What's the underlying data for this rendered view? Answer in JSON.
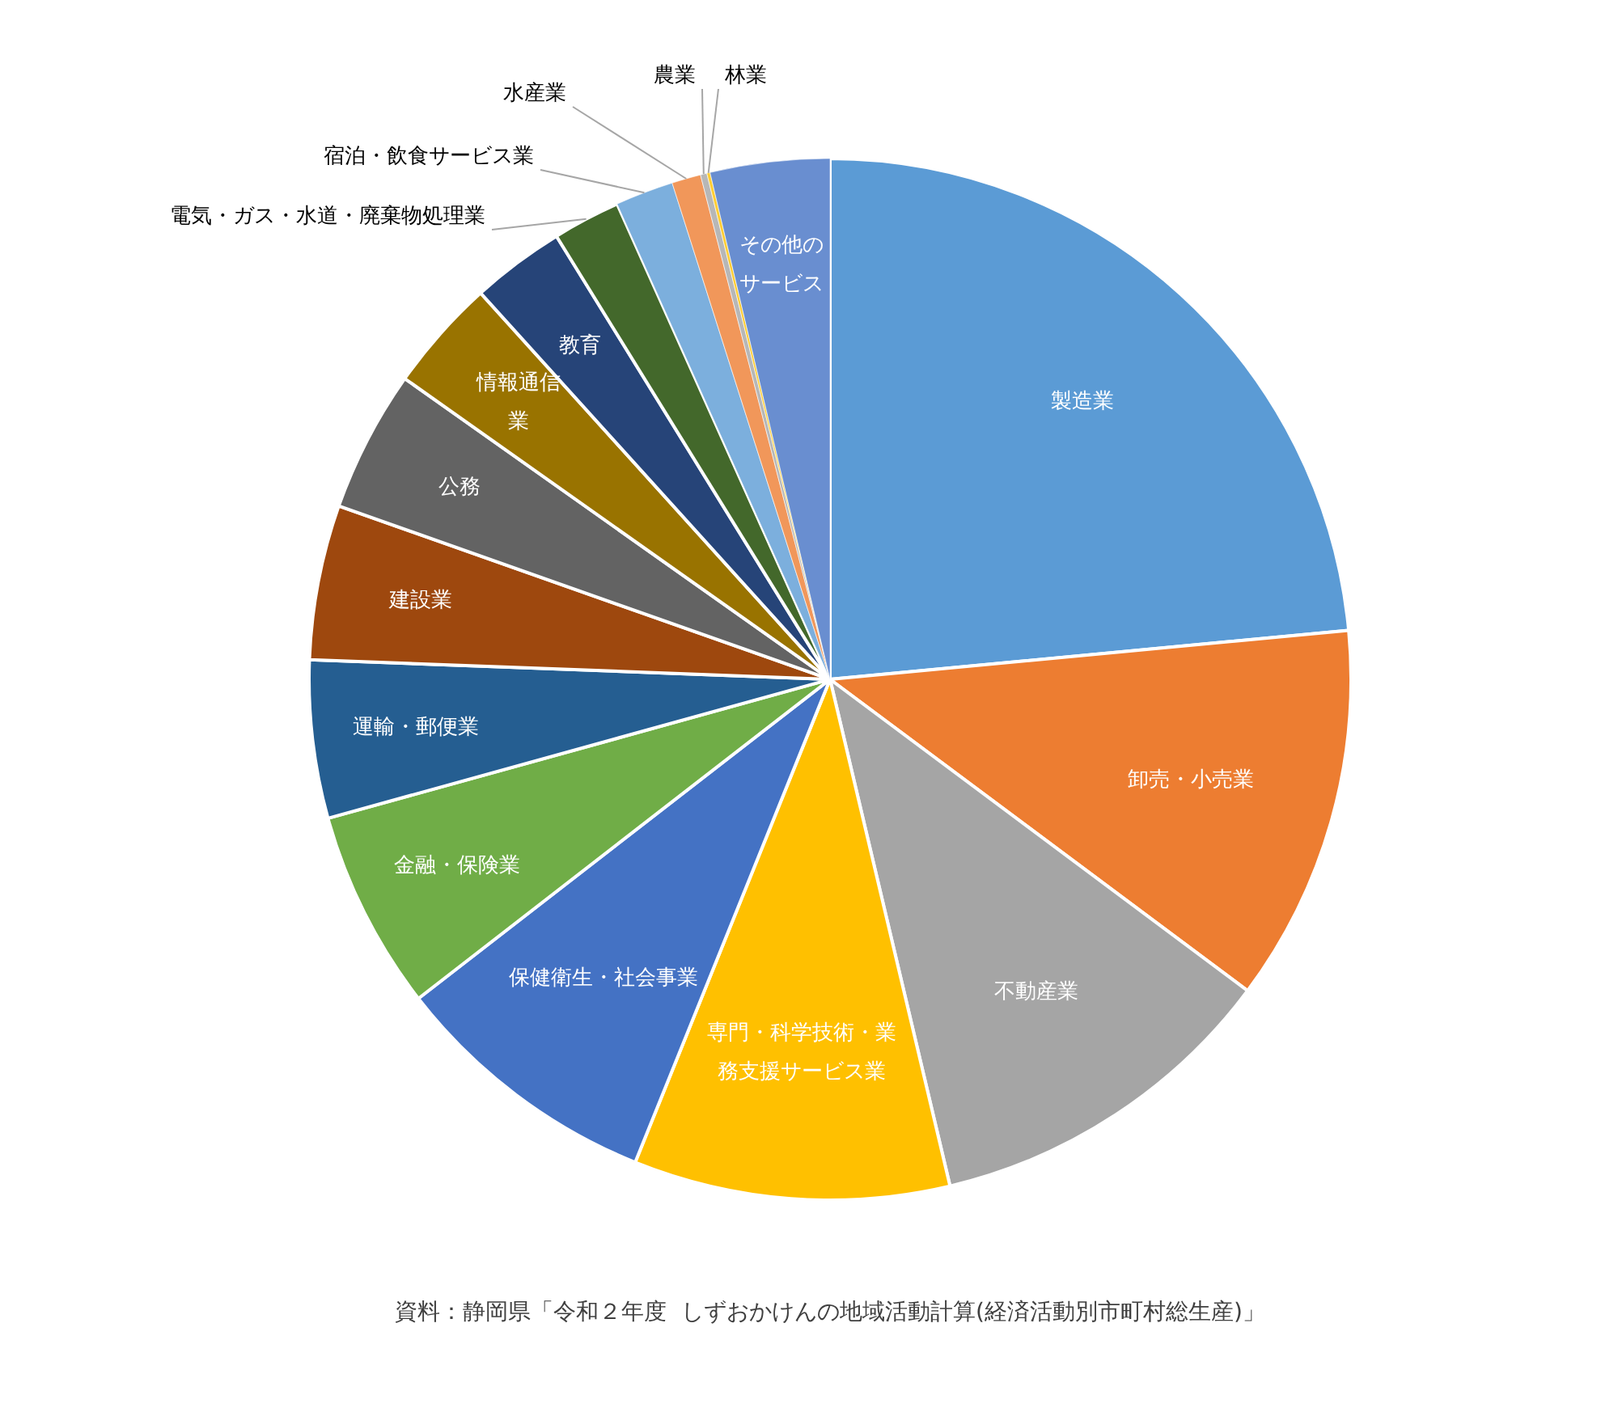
{
  "chart_data": {
    "type": "pie",
    "categories": [
      "製造業",
      "卸売・小売業",
      "不動産業",
      "専門・科学技術・業務支援サービス業",
      "保健衛生・社会事業",
      "金融・保険業",
      "運輸・郵便業",
      "建設業",
      "公務",
      "情報通信業",
      "教育",
      "電気・ガス・水道・廃棄物処理業",
      "宿泊・飲食サービス業",
      "水産業",
      "農業",
      "林業",
      "その他のサービス"
    ],
    "values": [
      23.5,
      11.7,
      11.1,
      9.8,
      8.4,
      6.2,
      4.9,
      4.8,
      4.4,
      3.5,
      2.9,
      2.1,
      1.8,
      0.9,
      0.2,
      0.1,
      3.7
    ],
    "colors": [
      "#5b9bd5",
      "#ed7d31",
      "#a5a5a5",
      "#ffc000",
      "#4472c4",
      "#70ad47",
      "#255e91",
      "#9e480e",
      "#636363",
      "#997300",
      "#264478",
      "#43682b",
      "#7cafdd",
      "#f1975a",
      "#b7b7b7",
      "#ffcd33",
      "#698ed0"
    ],
    "annotations": [
      "資料：静岡県「令和２年度  しずおかけんの地域活動計算(経済活動別市町村総生産)」"
    ],
    "legend": false
  }
}
